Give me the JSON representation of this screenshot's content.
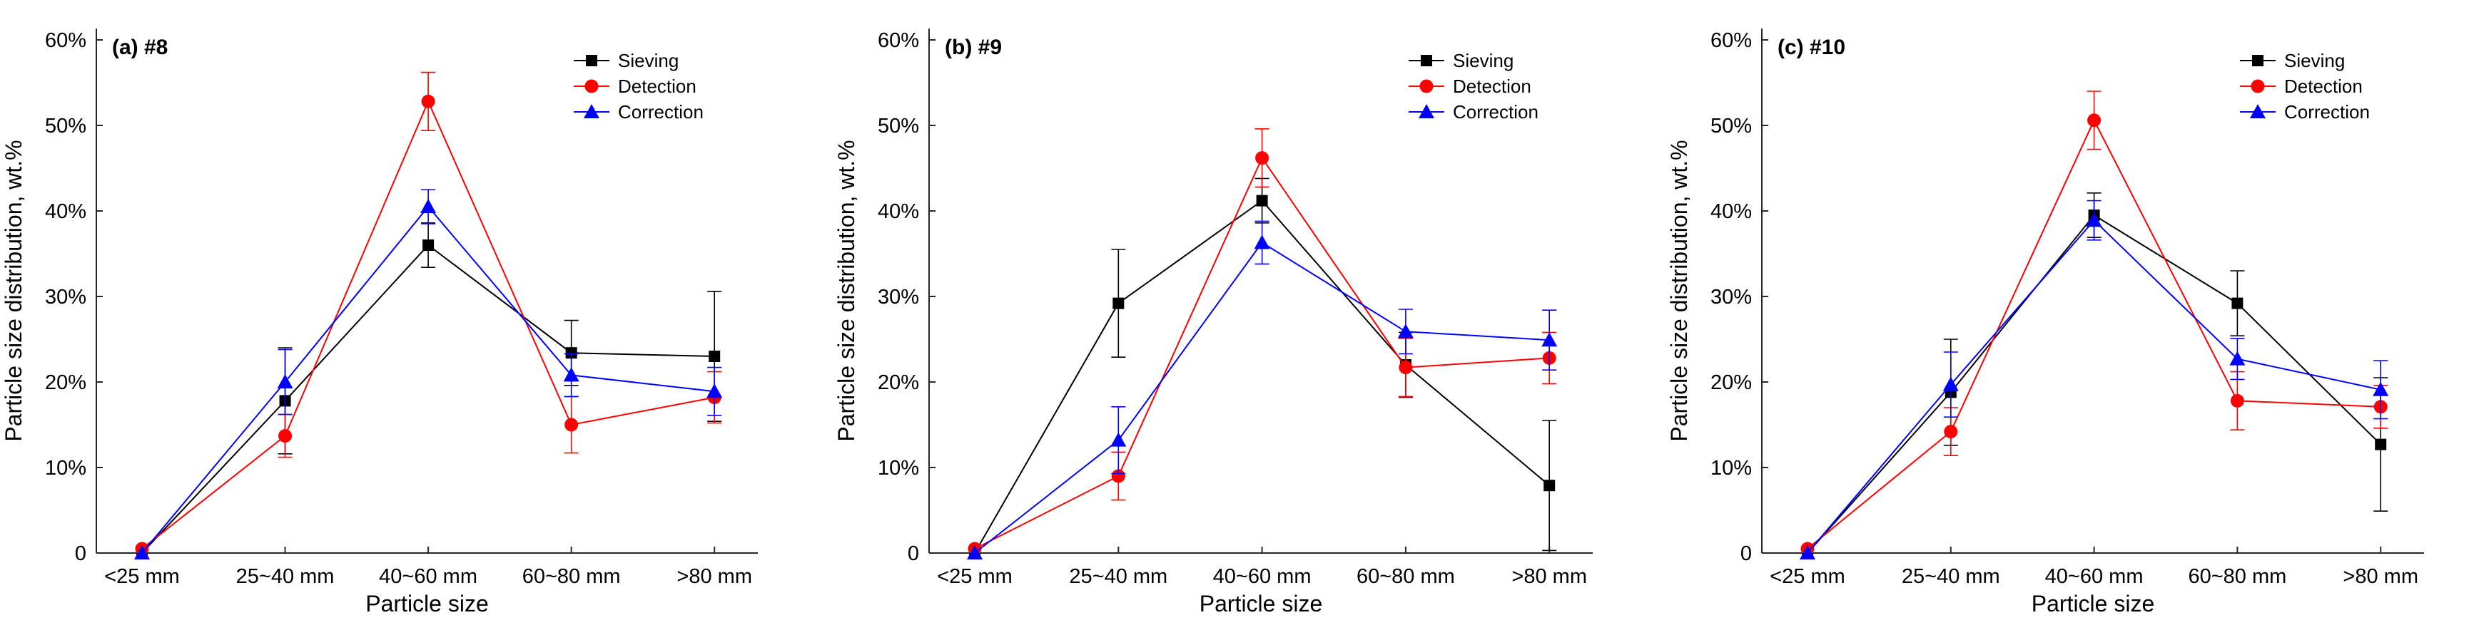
{
  "colors": {
    "Sieving": "#000000",
    "Detection": "#ff0000",
    "Correction": "#0000ff",
    "axis": "#262626"
  },
  "chart_data": [
    {
      "type": "line",
      "title": "(a) #8",
      "xlabel": "Particle size",
      "ylabel": "Particle size distribution, wt.%",
      "categories": [
        "<25 mm",
        "25~40 mm",
        "40~60 mm",
        "60~80 mm",
        ">80 mm"
      ],
      "yticks": [
        "0",
        "10%",
        "20%",
        "30%",
        "40%",
        "50%",
        "60%"
      ],
      "ylim": [
        0,
        60
      ],
      "legend": "top-right",
      "series": [
        {
          "name": "Sieving",
          "marker": "square",
          "values": [
            0,
            17.8,
            36.0,
            23.4,
            23.0
          ],
          "errors": [
            0,
            6.2,
            2.6,
            3.8,
            7.6
          ]
        },
        {
          "name": "Detection",
          "marker": "circle",
          "values": [
            0.5,
            13.7,
            52.8,
            15.0,
            18.2
          ],
          "errors": [
            0,
            2.5,
            3.4,
            3.3,
            3.0
          ]
        },
        {
          "name": "Correction",
          "marker": "triangle",
          "values": [
            0,
            20.0,
            40.5,
            20.8,
            18.9
          ],
          "errors": [
            0,
            3.8,
            2.0,
            2.5,
            2.8
          ]
        }
      ]
    },
    {
      "type": "line",
      "title": "(b) #9",
      "xlabel": "Particle size",
      "ylabel": "Particle size distribution, wt.%",
      "categories": [
        "<25 mm",
        "25~40 mm",
        "40~60 mm",
        "60~80 mm",
        ">80 mm"
      ],
      "yticks": [
        "0",
        "10%",
        "20%",
        "30%",
        "40%",
        "50%",
        "60%"
      ],
      "ylim": [
        0,
        60
      ],
      "legend": "top-right",
      "series": [
        {
          "name": "Sieving",
          "marker": "square",
          "values": [
            0,
            29.2,
            41.2,
            22.0,
            7.9
          ],
          "errors": [
            0,
            6.3,
            2.6,
            3.8,
            7.6
          ]
        },
        {
          "name": "Detection",
          "marker": "circle",
          "values": [
            0.5,
            9.0,
            46.2,
            21.7,
            22.8
          ],
          "errors": [
            0,
            2.8,
            3.4,
            3.4,
            3.0
          ]
        },
        {
          "name": "Correction",
          "marker": "triangle",
          "values": [
            0,
            13.2,
            36.3,
            25.9,
            24.9
          ],
          "errors": [
            0,
            3.9,
            2.5,
            2.6,
            3.5
          ]
        }
      ]
    },
    {
      "type": "line",
      "title": "(c) #10",
      "xlabel": "Particle size",
      "ylabel": "Particle size distribution, wt.%",
      "categories": [
        "<25 mm",
        "25~40 mm",
        "40~60 mm",
        "60~80 mm",
        ">80 mm"
      ],
      "yticks": [
        "0",
        "10%",
        "20%",
        "30%",
        "40%",
        "50%",
        "60%"
      ],
      "ylim": [
        0,
        60
      ],
      "legend": "top-right",
      "series": [
        {
          "name": "Sieving",
          "marker": "square",
          "values": [
            0,
            18.8,
            39.5,
            29.2,
            12.7
          ],
          "errors": [
            0,
            6.2,
            2.6,
            3.8,
            7.8
          ]
        },
        {
          "name": "Detection",
          "marker": "circle",
          "values": [
            0.5,
            14.2,
            50.6,
            17.8,
            17.1
          ],
          "errors": [
            0,
            2.8,
            3.4,
            3.4,
            2.5
          ]
        },
        {
          "name": "Correction",
          "marker": "triangle",
          "values": [
            0,
            19.7,
            38.9,
            22.7,
            19.1
          ],
          "errors": [
            0,
            3.8,
            2.3,
            2.4,
            3.4
          ]
        }
      ]
    }
  ]
}
